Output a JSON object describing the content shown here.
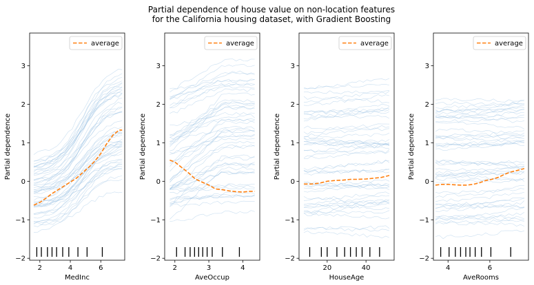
{
  "figure": {
    "title_lines": [
      "Partial dependence of house value on non-location features",
      "for the California housing dataset, with Gradient Boosting"
    ]
  },
  "colors": {
    "ice": "#9cc3e4",
    "average": "#ff7f0e",
    "deciles": "#000000",
    "frame": "#000000",
    "legend_border": "#cccccc"
  },
  "chart_data": [
    {
      "type": "line",
      "xlabel": "MedInc",
      "ylabel": "Partial dependence",
      "xlim": [
        1.33,
        7.57
      ],
      "ylim": [
        -2.05,
        3.85
      ],
      "xticks": [
        2,
        4,
        6
      ],
      "yticks": [
        -2,
        -1,
        0,
        1,
        2,
        3
      ],
      "legend": {
        "label": "average",
        "position": "upper right"
      },
      "deciles": [
        1.8,
        2.1,
        2.5,
        2.8,
        3.1,
        3.5,
        3.9,
        4.5,
        5.1,
        6.1
      ],
      "average": {
        "x": [
          1.6,
          2.0,
          2.4,
          2.8,
          3.2,
          3.6,
          4.0,
          4.4,
          4.8,
          5.2,
          5.6,
          6.0,
          6.4,
          6.8,
          7.2,
          7.4
        ],
        "y": [
          -0.62,
          -0.55,
          -0.44,
          -0.32,
          -0.22,
          -0.12,
          -0.02,
          0.08,
          0.22,
          0.36,
          0.52,
          0.72,
          0.98,
          1.2,
          1.33,
          1.33
        ]
      },
      "ice": {
        "x_range": [
          1.6,
          7.4
        ],
        "count": 50,
        "shape": "sigmoid",
        "start_range": [
          -1.35,
          0.7
        ],
        "end_range": [
          -0.45,
          3.02
        ]
      }
    },
    {
      "type": "line",
      "xlabel": "AveOccup",
      "ylabel": "Partial dependence",
      "xlim": [
        1.7,
        4.5
      ],
      "ylim": [
        -2.05,
        3.85
      ],
      "xticks": [
        2,
        3,
        4
      ],
      "yticks": [
        -2,
        -1,
        0,
        1,
        2,
        3
      ],
      "legend": {
        "label": "average",
        "position": "upper right"
      },
      "deciles": [
        2.05,
        2.3,
        2.45,
        2.58,
        2.7,
        2.82,
        2.95,
        3.1,
        3.4,
        3.9
      ],
      "average": {
        "x": [
          1.85,
          2.0,
          2.2,
          2.4,
          2.6,
          2.8,
          3.0,
          3.2,
          3.4,
          3.6,
          3.8,
          4.0,
          4.2,
          4.35
        ],
        "y": [
          0.55,
          0.5,
          0.36,
          0.22,
          0.06,
          -0.02,
          -0.1,
          -0.2,
          -0.22,
          -0.25,
          -0.27,
          -0.28,
          -0.26,
          -0.26
        ]
      },
      "ice": {
        "x_range": [
          1.85,
          4.35
        ],
        "count": 50,
        "shape": "decreasing",
        "start_range": [
          -0.8,
          3.3
        ],
        "end_range": [
          -1.25,
          3.0
        ]
      }
    },
    {
      "type": "line",
      "xlabel": "HouseAge",
      "ylabel": "Partial dependence",
      "xlim": [
        5.5,
        54.5
      ],
      "ylim": [
        -2.05,
        3.85
      ],
      "xticks": [
        20,
        40
      ],
      "yticks": [
        -2,
        -1,
        0,
        1,
        2,
        3
      ],
      "legend": {
        "label": "average",
        "position": "upper right"
      },
      "deciles": [
        11,
        17,
        20,
        25,
        29,
        32,
        35,
        38,
        42,
        47
      ],
      "average": {
        "x": [
          8,
          12,
          16,
          20,
          24,
          28,
          32,
          36,
          40,
          44,
          48,
          52
        ],
        "y": [
          -0.07,
          -0.07,
          -0.05,
          0.0,
          0.02,
          0.03,
          0.05,
          0.05,
          0.06,
          0.08,
          0.1,
          0.15
        ]
      },
      "ice": {
        "x_range": [
          8,
          52
        ],
        "count": 50,
        "shape": "flat",
        "start_range": [
          -1.55,
          2.7
        ],
        "end_range": [
          -1.2,
          2.75
        ]
      }
    },
    {
      "type": "line",
      "xlabel": "AveRooms",
      "ylabel": "Partial dependence",
      "xlim": [
        3.3,
        7.85
      ],
      "ylim": [
        -2.05,
        3.85
      ],
      "xticks": [
        4,
        6
      ],
      "yticks": [
        -2,
        -1,
        0,
        1,
        2,
        3
      ],
      "legend": {
        "label": "average",
        "position": "upper right"
      },
      "deciles": [
        3.65,
        4.05,
        4.35,
        4.6,
        4.85,
        5.05,
        5.3,
        5.6,
        6.05,
        7.0
      ],
      "average": {
        "x": [
          3.4,
          3.7,
          4.0,
          4.3,
          4.6,
          4.9,
          5.2,
          5.5,
          5.8,
          6.1,
          6.4,
          6.7,
          7.0,
          7.3,
          7.65
        ],
        "y": [
          -0.1,
          -0.08,
          -0.08,
          -0.09,
          -0.1,
          -0.1,
          -0.08,
          -0.04,
          0.02,
          0.05,
          0.1,
          0.18,
          0.24,
          0.28,
          0.33
        ]
      },
      "ice": {
        "x_range": [
          3.4,
          7.65
        ],
        "count": 50,
        "shape": "rising",
        "start_range": [
          -1.45,
          2.45
        ],
        "end_range": [
          -1.05,
          2.9
        ]
      }
    }
  ]
}
